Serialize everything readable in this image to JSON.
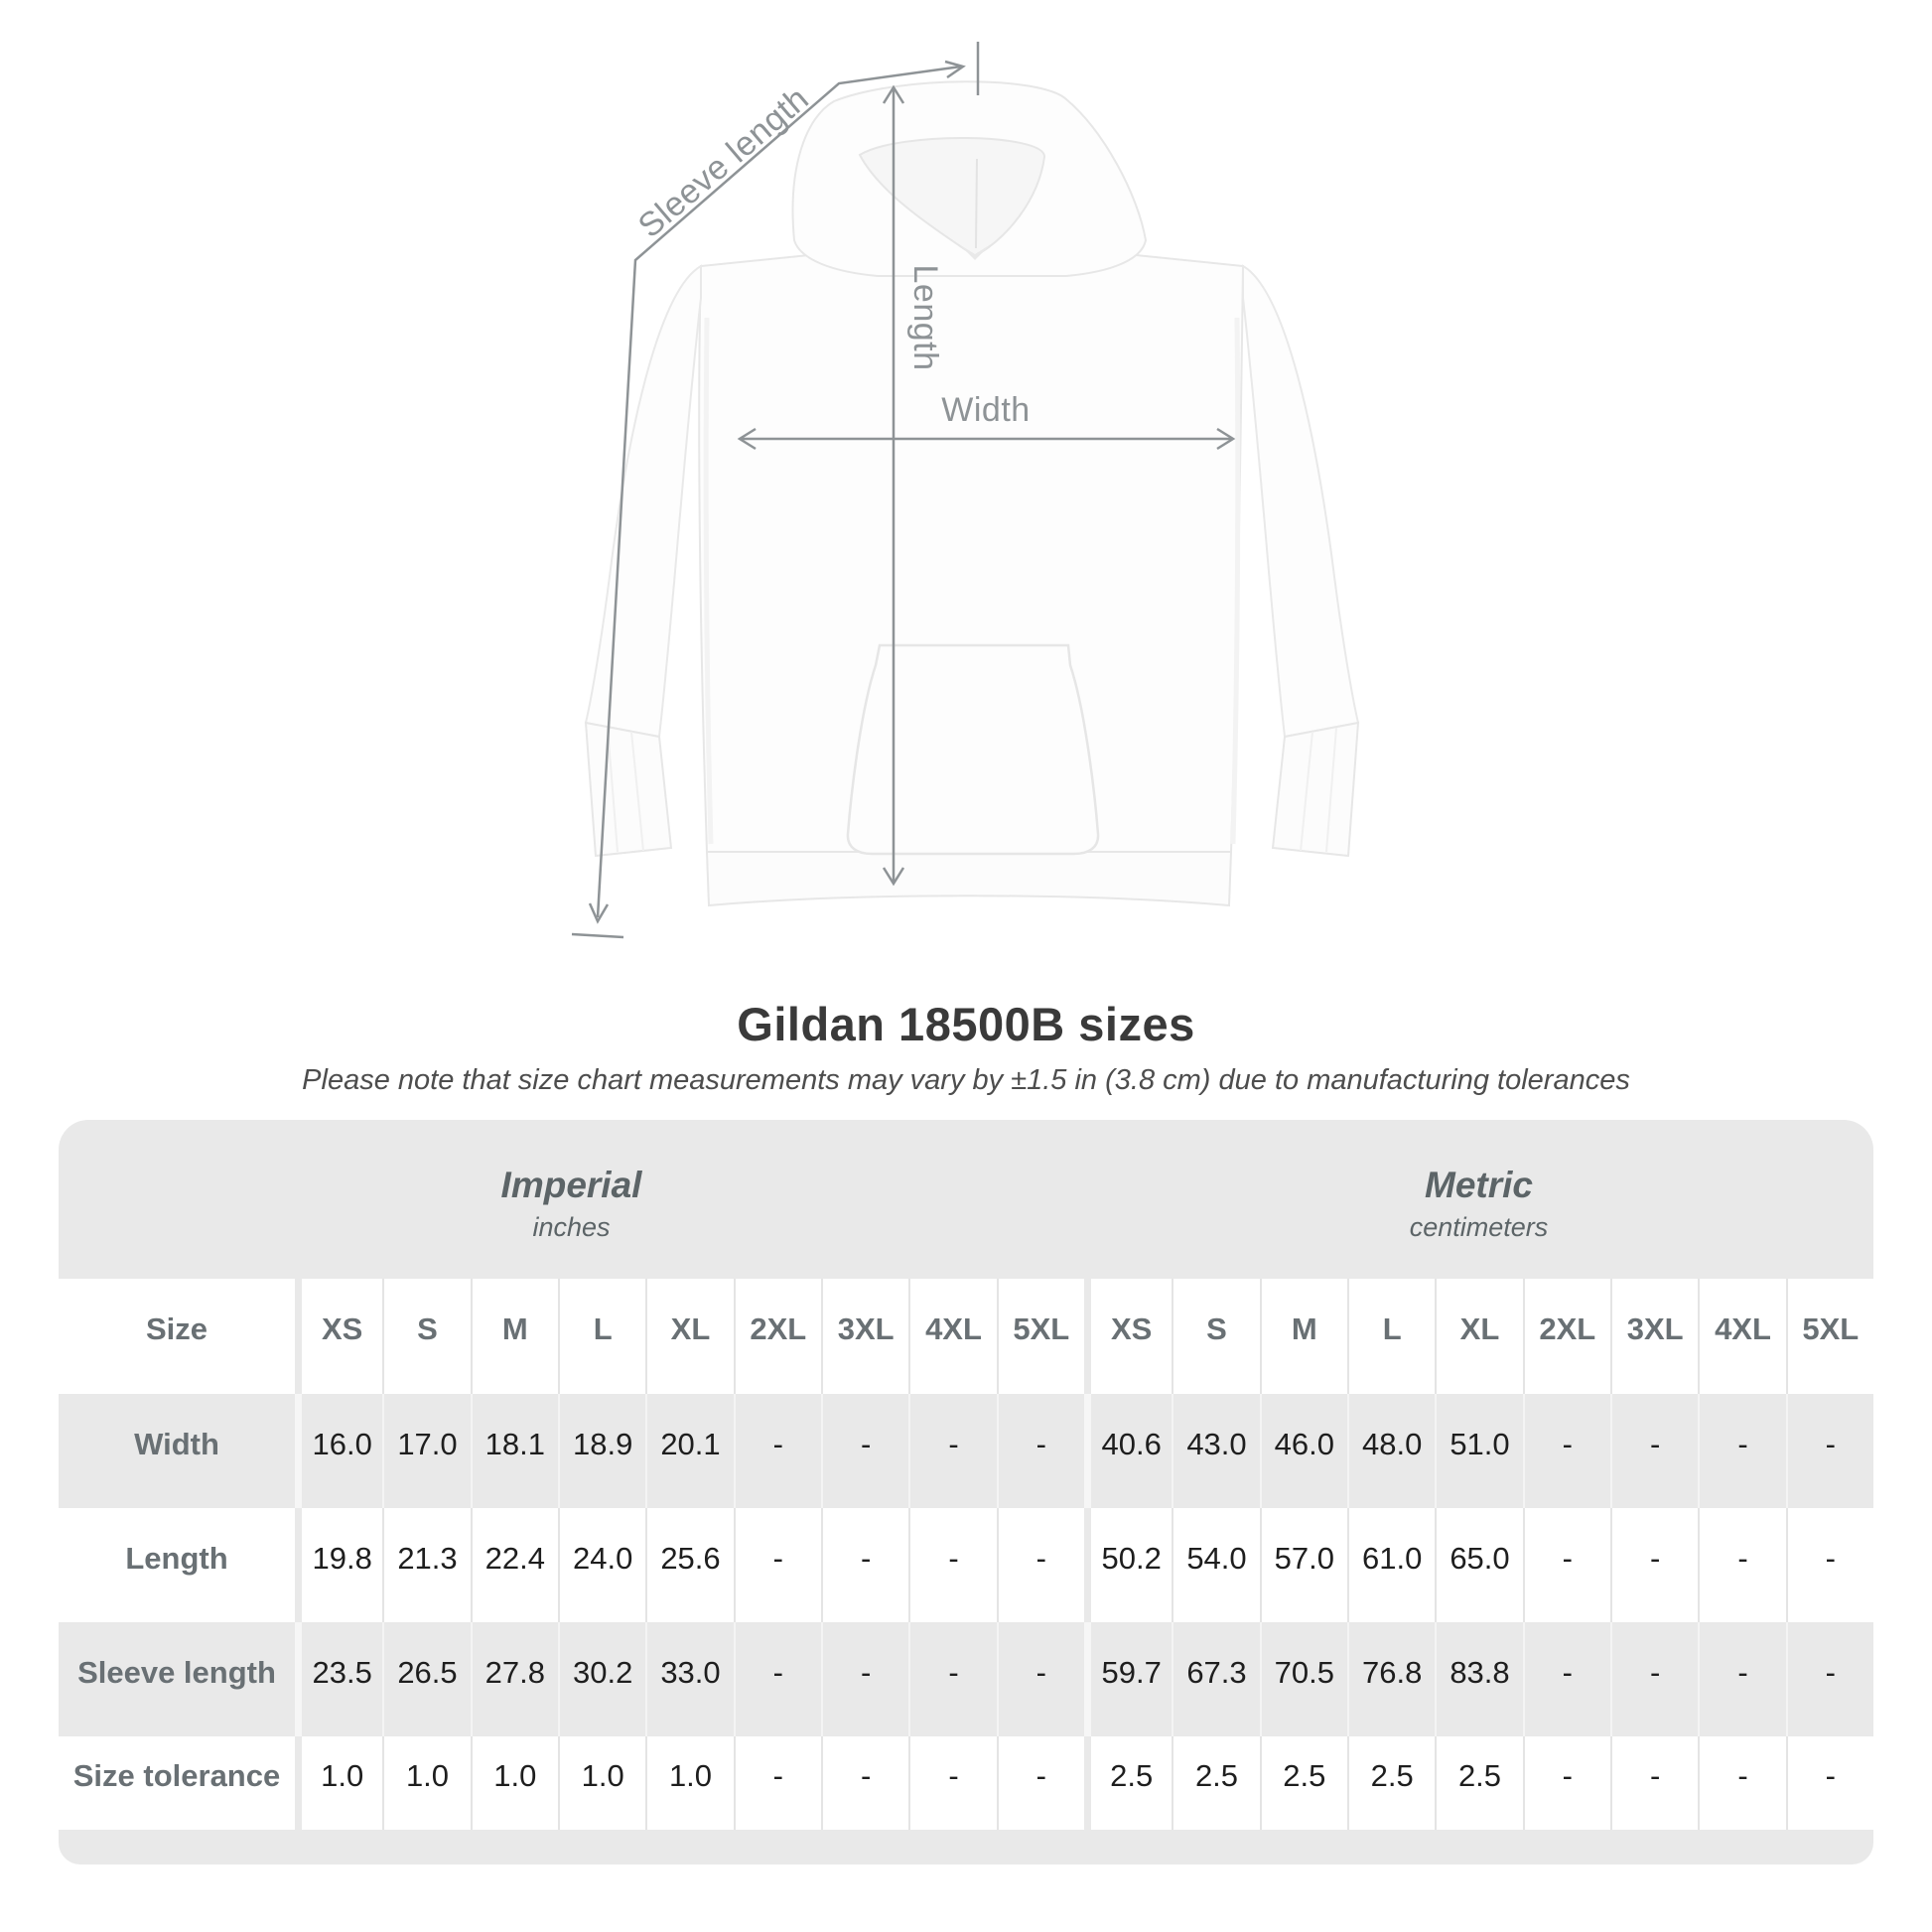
{
  "diagram": {
    "labels": {
      "sleeve_length": "Sleeve length",
      "length": "Length",
      "width": "Width"
    },
    "illustration": "white-hoodie-front-view"
  },
  "title": "Gildan 18500B sizes",
  "subtitle": "Please note that size chart measurements may vary by ±1.5 in (3.8 cm) due to manufacturing tolerances",
  "table": {
    "size_label": "Size",
    "unit_groups": [
      {
        "name": "Imperial",
        "unit": "inches"
      },
      {
        "name": "Metric",
        "unit": "centimeters"
      }
    ],
    "sizes": [
      "XS",
      "S",
      "M",
      "L",
      "XL",
      "2XL",
      "3XL",
      "4XL",
      "5XL"
    ],
    "rows": [
      {
        "label": "Width",
        "imperial": [
          "16.0",
          "17.0",
          "18.1",
          "18.9",
          "20.1",
          "-",
          "-",
          "-",
          "-"
        ],
        "metric": [
          "40.6",
          "43.0",
          "46.0",
          "48.0",
          "51.0",
          "-",
          "-",
          "-",
          "-"
        ]
      },
      {
        "label": "Length",
        "imperial": [
          "19.8",
          "21.3",
          "22.4",
          "24.0",
          "25.6",
          "-",
          "-",
          "-",
          "-"
        ],
        "metric": [
          "50.2",
          "54.0",
          "57.0",
          "61.0",
          "65.0",
          "-",
          "-",
          "-",
          "-"
        ]
      },
      {
        "label": "Sleeve length",
        "imperial": [
          "23.5",
          "26.5",
          "27.8",
          "30.2",
          "33.0",
          "-",
          "-",
          "-",
          "-"
        ],
        "metric": [
          "59.7",
          "67.3",
          "70.5",
          "76.8",
          "83.8",
          "-",
          "-",
          "-",
          "-"
        ]
      },
      {
        "label": "Size tolerance",
        "imperial": [
          "1.0",
          "1.0",
          "1.0",
          "1.0",
          "1.0",
          "-",
          "-",
          "-",
          "-"
        ],
        "metric": [
          "2.5",
          "2.5",
          "2.5",
          "2.5",
          "2.5",
          "-",
          "-",
          "-",
          "-"
        ]
      }
    ]
  },
  "chart_data": {
    "type": "table",
    "title": "Gildan 18500B sizes",
    "note": "Please note that size chart measurements may vary by ±1.5 in (3.8 cm) due to manufacturing tolerances",
    "column_groups": [
      "Imperial (inches)",
      "Metric (centimeters)"
    ],
    "columns": [
      "Size",
      "XS",
      "S",
      "M",
      "L",
      "XL",
      "2XL",
      "3XL",
      "4XL",
      "5XL",
      "XS",
      "S",
      "M",
      "L",
      "XL",
      "2XL",
      "3XL",
      "4XL",
      "5XL"
    ],
    "rows": [
      [
        "Width",
        16.0,
        17.0,
        18.1,
        18.9,
        20.1,
        null,
        null,
        null,
        null,
        40.6,
        43.0,
        46.0,
        48.0,
        51.0,
        null,
        null,
        null,
        null
      ],
      [
        "Length",
        19.8,
        21.3,
        22.4,
        24.0,
        25.6,
        null,
        null,
        null,
        null,
        50.2,
        54.0,
        57.0,
        61.0,
        65.0,
        null,
        null,
        null,
        null
      ],
      [
        "Sleeve length",
        23.5,
        26.5,
        27.8,
        30.2,
        33.0,
        null,
        null,
        null,
        null,
        59.7,
        67.3,
        70.5,
        76.8,
        83.8,
        null,
        null,
        null,
        null
      ],
      [
        "Size tolerance",
        1.0,
        1.0,
        1.0,
        1.0,
        1.0,
        null,
        null,
        null,
        null,
        2.5,
        2.5,
        2.5,
        2.5,
        2.5,
        null,
        null,
        null,
        null
      ]
    ]
  },
  "colors": {
    "page_background": "#ffffff",
    "table_band": "#e9e9e9",
    "cell_white": "#ffffff",
    "annotation_gray": "#8e9396",
    "heading_text": "#3a3a3a",
    "table_label_text": "#697074",
    "value_text": "#1e1e1e",
    "hoodie_outline": "#e7e7e7",
    "hoodie_fill": "#fdfdfd"
  }
}
